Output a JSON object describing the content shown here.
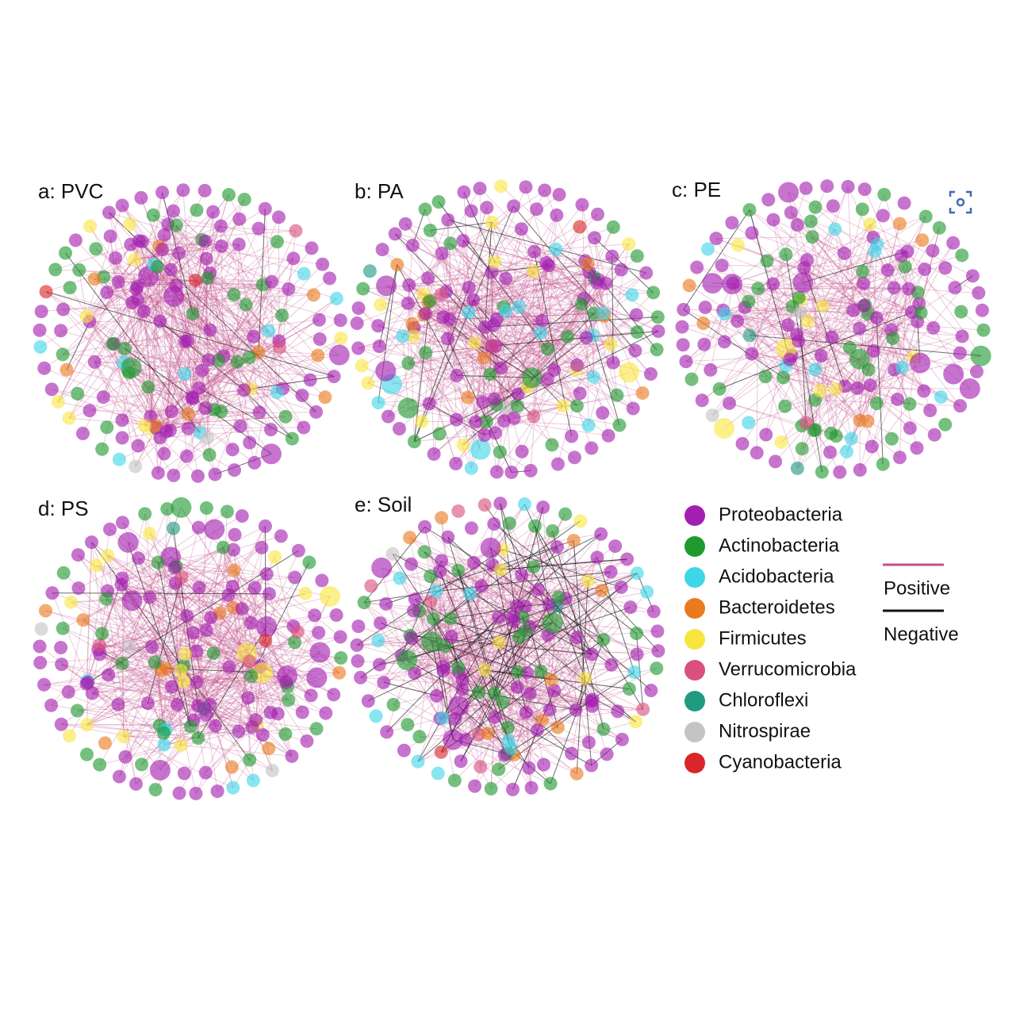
{
  "panels": [
    {
      "label": "a: PVC"
    },
    {
      "label": "b: PA"
    },
    {
      "label": "c: PE"
    },
    {
      "label": "d: PS"
    },
    {
      "label": "e: Soil"
    }
  ],
  "legend": {
    "items": [
      {
        "label": "Proteobacteria",
        "color": "#a31fb0"
      },
      {
        "label": "Actinobacteria",
        "color": "#1f9a2e"
      },
      {
        "label": "Acidobacteria",
        "color": "#3fd6e8"
      },
      {
        "label": "Bacteroidetes",
        "color": "#ea7a1e"
      },
      {
        "label": "Firmicutes",
        "color": "#f8e640"
      },
      {
        "label": "Verrucomicrobia",
        "color": "#d9507f"
      },
      {
        "label": "Chloroflexi",
        "color": "#219a7f"
      },
      {
        "label": "Nitrospirae",
        "color": "#c4c4c4"
      },
      {
        "label": "Cyanobacteria",
        "color": "#d8262a"
      }
    ]
  },
  "edges": [
    {
      "label": "Positive",
      "color": "#c0508a"
    },
    {
      "label": "Negative",
      "color": "#111111"
    }
  ]
}
